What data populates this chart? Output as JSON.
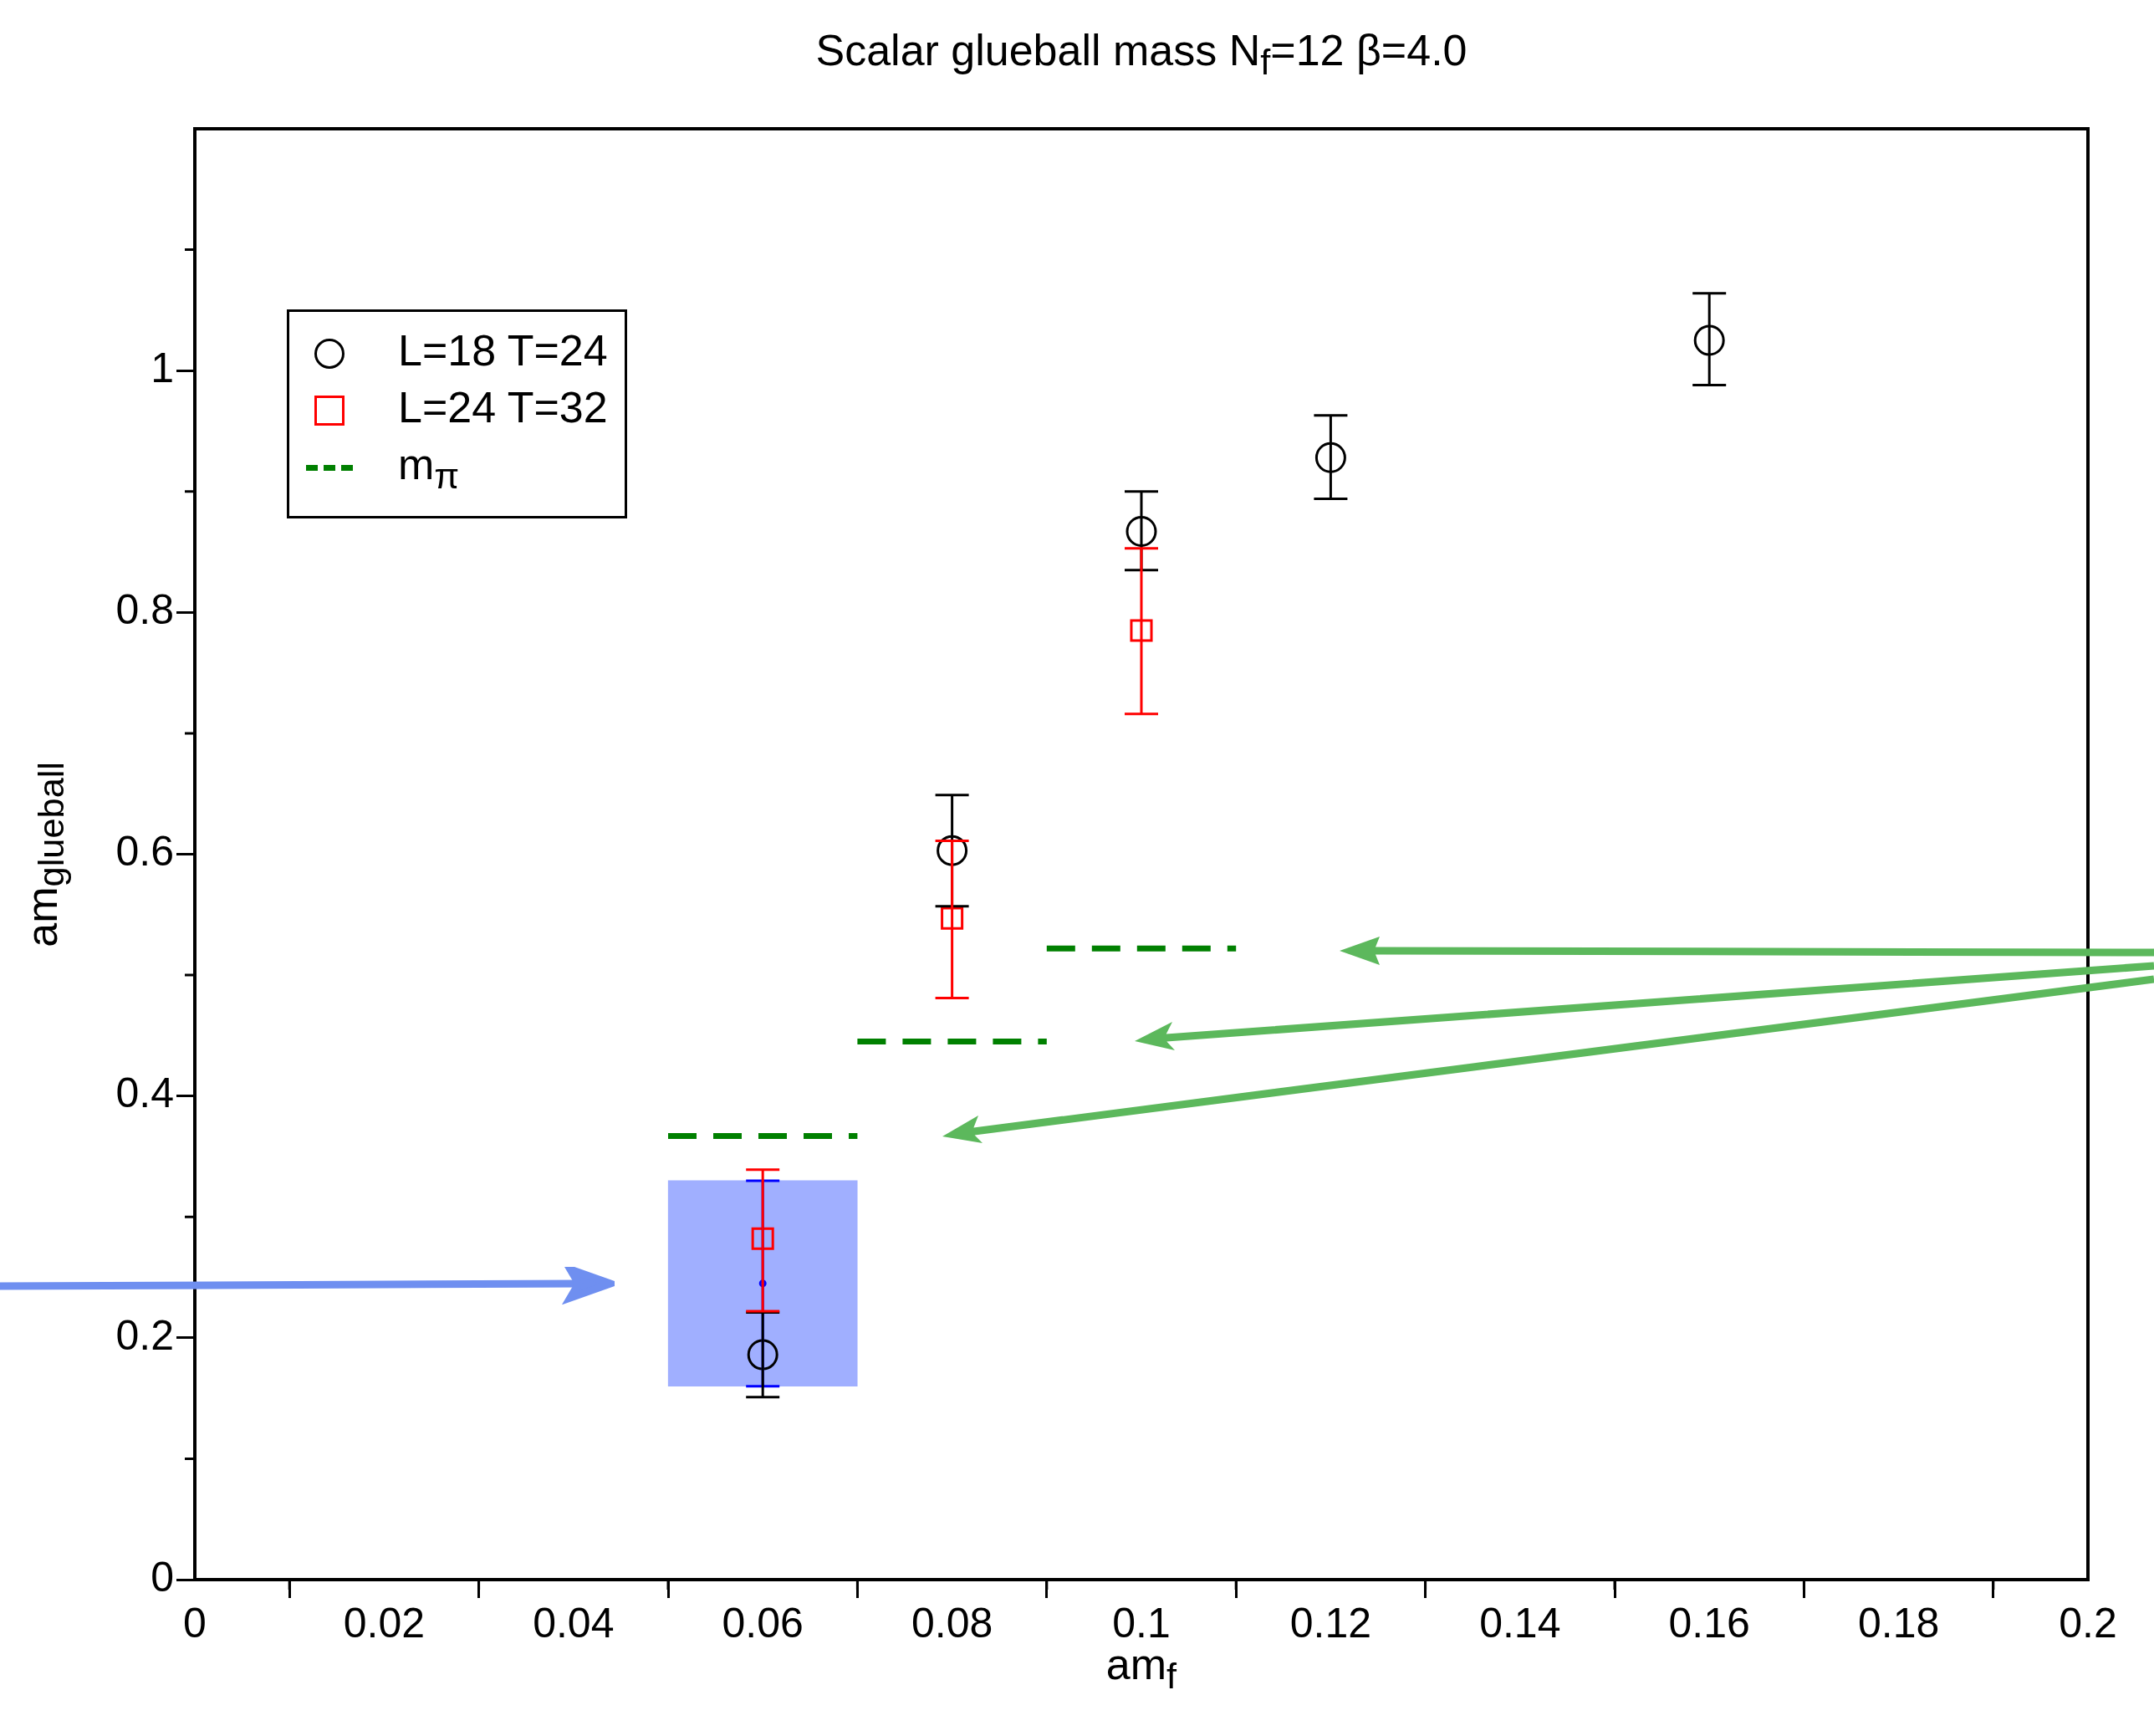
{
  "chart_data": {
    "type": "scatter",
    "title": "Scalar glueball mass N$_{f}$=12  β=4.0",
    "xlabel": "am$_{f}$",
    "ylabel": "am$_{glueball}$",
    "xlim": [
      0,
      0.2
    ],
    "xticks": [
      0,
      0.02,
      0.04,
      0.06,
      0.08,
      0.1,
      0.12,
      0.14,
      0.16,
      0.18,
      0.2
    ],
    "ylim": [
      0,
      1.2
    ],
    "yticks": [
      0,
      0.2,
      0.4,
      0.6,
      0.8,
      1
    ],
    "legend": "top left",
    "grid": false,
    "series": [
      {
        "type": "bar",
        "color": "#a0afff",
        "x": [
          0.06
        ],
        "base": [
          0.16
        ],
        "values": [
          0.17
        ]
      },
      {
        "color": "#0000ff",
        "x": [
          0.06
        ],
        "values": [
          0.245
        ],
        "errors": [
          [
            0.16,
            0.33
          ]
        ]
      },
      {
        "name": "L=18 T=24",
        "marker": "circle",
        "color": "#000000",
        "x": [
          0.06,
          0.08,
          0.1,
          0.12,
          0.16
        ],
        "values": [
          0.186,
          0.603,
          0.867,
          0.928,
          1.025
        ],
        "errors": [
          [
            0.151,
            0.221
          ],
          [
            0.557,
            0.649
          ],
          [
            0.835,
            0.9
          ],
          [
            0.894,
            0.963
          ],
          [
            0.988,
            1.064
          ]
        ]
      },
      {
        "name": "L=24 T=32",
        "marker": "square",
        "color": "#ff0000",
        "x": [
          0.06,
          0.08,
          0.1
        ],
        "values": [
          0.282,
          0.547,
          0.785
        ],
        "errors": [
          [
            0.222,
            0.339
          ],
          [
            0.481,
            0.611
          ],
          [
            0.716,
            0.853
          ]
        ]
      },
      {
        "name": "m$_{π}$",
        "type": "line",
        "line_style": "dashed",
        "marker": "none",
        "color": "#008000",
        "x": [
          0.05,
          0.07
        ],
        "values": [
          0.367,
          0.367
        ]
      },
      {
        "type": "line",
        "line_style": "dashed",
        "marker": "none",
        "color": "#008000",
        "x": [
          0.07,
          0.09
        ],
        "values": [
          0.445,
          0.445
        ]
      },
      {
        "type": "line",
        "line_style": "dashed",
        "marker": "none",
        "color": "#008000",
        "x": [
          0.09,
          0.11
        ],
        "values": [
          0.522,
          0.522
        ]
      }
    ]
  }
}
